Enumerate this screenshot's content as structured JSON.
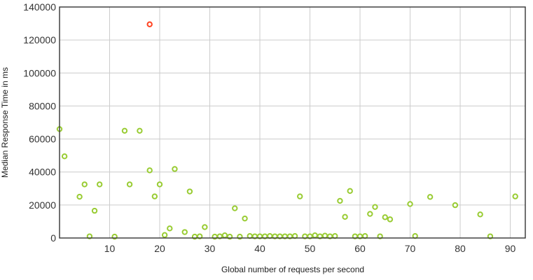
{
  "chart_data": {
    "type": "scatter",
    "xlabel": "Global number of requests per second",
    "ylabel": "Median Response Time in ms",
    "xlim": [
      0,
      93
    ],
    "ylim": [
      0,
      140000
    ],
    "x_ticks": [
      10,
      20,
      30,
      40,
      50,
      60,
      70,
      80,
      90
    ],
    "x_tick_labels": [
      "10",
      "20",
      "30",
      "40",
      "50",
      "60",
      "70",
      "80",
      "90"
    ],
    "y_ticks": [
      0,
      20000,
      40000,
      60000,
      80000,
      100000,
      120000,
      140000
    ],
    "y_tick_labels": [
      "0",
      "20000",
      "40000",
      "60000",
      "80000",
      "100000",
      "120000",
      "140000"
    ],
    "grid": true,
    "colors": {
      "normal": "#99cc33",
      "highlight": "#ff4422",
      "grid": "#cccccc",
      "frame": "#333333"
    },
    "series": [
      {
        "color": "#99cc33",
        "points": [
          [
            0,
            66000
          ],
          [
            1,
            49500
          ],
          [
            4,
            25000
          ],
          [
            5,
            32500
          ],
          [
            6,
            1000
          ],
          [
            7,
            16500
          ],
          [
            8,
            32500
          ],
          [
            11,
            800
          ],
          [
            13,
            65000
          ],
          [
            14,
            32500
          ],
          [
            16,
            65000
          ],
          [
            18,
            41000
          ],
          [
            19,
            25200
          ],
          [
            20,
            32500
          ],
          [
            21,
            1800
          ],
          [
            22,
            5800
          ],
          [
            23,
            41800
          ],
          [
            25,
            3600
          ],
          [
            26,
            28200
          ],
          [
            27,
            800
          ],
          [
            28,
            1000
          ],
          [
            29,
            6600
          ],
          [
            31,
            800
          ],
          [
            32,
            1000
          ],
          [
            33,
            1600
          ],
          [
            34,
            800
          ],
          [
            35,
            18000
          ],
          [
            36,
            800
          ],
          [
            37,
            11800
          ],
          [
            38,
            1200
          ],
          [
            39,
            1000
          ],
          [
            40,
            1000
          ],
          [
            41,
            1000
          ],
          [
            42,
            1200
          ],
          [
            43,
            1000
          ],
          [
            44,
            1000
          ],
          [
            45,
            1000
          ],
          [
            46,
            1000
          ],
          [
            47,
            1200
          ],
          [
            48,
            25200
          ],
          [
            49,
            1000
          ],
          [
            50,
            1000
          ],
          [
            51,
            1600
          ],
          [
            52,
            1000
          ],
          [
            53,
            1400
          ],
          [
            54,
            1000
          ],
          [
            55,
            1200
          ],
          [
            56,
            22500
          ],
          [
            57,
            12800
          ],
          [
            58,
            28500
          ],
          [
            59,
            1000
          ],
          [
            60,
            1000
          ],
          [
            61,
            1200
          ],
          [
            62,
            14600
          ],
          [
            63,
            18800
          ],
          [
            64,
            1000
          ],
          [
            65,
            12600
          ],
          [
            66,
            11300
          ],
          [
            70,
            20600
          ],
          [
            71,
            1200
          ],
          [
            74,
            24900
          ],
          [
            79,
            19900
          ],
          [
            84,
            14300
          ],
          [
            86,
            1000
          ],
          [
            91,
            25200
          ]
        ]
      },
      {
        "color": "#ff4422",
        "points": [
          [
            18,
            129500
          ]
        ]
      }
    ]
  }
}
